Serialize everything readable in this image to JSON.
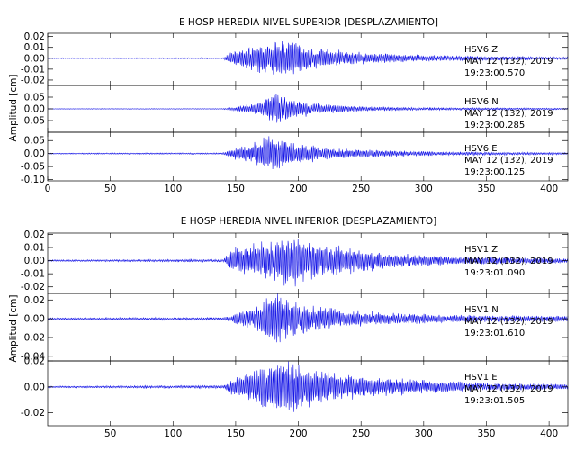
{
  "chart_data": [
    {
      "type": "line",
      "title": "E HOSP HEREDIA NIVEL SUPERIOR [DESPLAZAMIENTO]",
      "ylabel": "Amplitud [cm]",
      "xlabel": "",
      "xlim": [
        0,
        415
      ],
      "xticks": [
        "0",
        "50",
        "100",
        "150",
        "200",
        "250",
        "300",
        "350",
        "400"
      ],
      "grid": false,
      "series": [
        {
          "name": "HSV6 Z",
          "station": "HSV6",
          "component": "Z",
          "date": "MAY 12 (132), 2019",
          "start_time": "19:23:00.570",
          "color": "#1414e6",
          "ylim": [
            -0.025,
            0.023
          ],
          "yticks": [
            "0.02",
            "0.01",
            "0.00",
            "-0.01",
            "-0.02"
          ],
          "envelope": [
            [
              0,
              0.0004
            ],
            [
              140,
              0.0006
            ],
            [
              146,
              0.006
            ],
            [
              160,
              0.011
            ],
            [
              175,
              0.014
            ],
            [
              192,
              0.018
            ],
            [
              205,
              0.012
            ],
            [
              230,
              0.007
            ],
            [
              260,
              0.0045
            ],
            [
              300,
              0.003
            ],
            [
              350,
              0.002
            ],
            [
              415,
              0.0012
            ]
          ]
        },
        {
          "name": "HSV6 N",
          "station": "HSV6",
          "component": "N",
          "date": "MAY 12 (132), 2019",
          "start_time": "19:23:00.285",
          "color": "#1414e6",
          "ylim": [
            -0.1,
            0.1
          ],
          "yticks": [
            "0.05",
            "0.00",
            "-0.05"
          ],
          "envelope": [
            [
              0,
              0.001
            ],
            [
              140,
              0.0015
            ],
            [
              150,
              0.008
            ],
            [
              165,
              0.025
            ],
            [
              175,
              0.055
            ],
            [
              182,
              0.07
            ],
            [
              195,
              0.04
            ],
            [
              215,
              0.022
            ],
            [
              250,
              0.01
            ],
            [
              300,
              0.006
            ],
            [
              415,
              0.003
            ]
          ]
        },
        {
          "name": "HSV6 E",
          "station": "HSV6",
          "component": "E",
          "date": "MAY 12 (132), 2019",
          "start_time": "19:23:00.125",
          "color": "#1414e6",
          "ylim": [
            -0.105,
            0.082
          ],
          "yticks": [
            "0.05",
            "0.00",
            "-0.05",
            "-0.10"
          ],
          "envelope": [
            [
              0,
              0.002
            ],
            [
              140,
              0.003
            ],
            [
              148,
              0.02
            ],
            [
              165,
              0.04
            ],
            [
              176,
              0.07
            ],
            [
              185,
              0.06
            ],
            [
              200,
              0.035
            ],
            [
              230,
              0.02
            ],
            [
              270,
              0.012
            ],
            [
              320,
              0.007
            ],
            [
              415,
              0.004
            ]
          ]
        }
      ]
    },
    {
      "type": "line",
      "title": "E HOSP HEREDIA NIVEL INFERIOR [DESPLAZAMIENTO]",
      "ylabel": "Amplitud [cm]",
      "xlabel": "",
      "xlim": [
        0,
        415
      ],
      "xticks": [
        "50",
        "100",
        "150",
        "200",
        "250",
        "300",
        "350",
        "400"
      ],
      "grid": false,
      "series": [
        {
          "name": "HSV1 Z",
          "station": "HSV1",
          "component": "Z",
          "date": "MAY 12 (132), 2019",
          "start_time": "19:23:01.090",
          "color": "#1414e6",
          "ylim": [
            -0.025,
            0.021
          ],
          "yticks": [
            "0.02",
            "0.01",
            "0.00",
            "-0.01",
            "-0.02"
          ],
          "envelope": [
            [
              0,
              0.0006
            ],
            [
              140,
              0.001
            ],
            [
              146,
              0.008
            ],
            [
              165,
              0.013
            ],
            [
              185,
              0.017
            ],
            [
              198,
              0.02
            ],
            [
              215,
              0.014
            ],
            [
              240,
              0.01
            ],
            [
              280,
              0.005
            ],
            [
              330,
              0.003
            ],
            [
              415,
              0.002
            ]
          ]
        },
        {
          "name": "HSV1 N",
          "station": "HSV1",
          "component": "N",
          "date": "MAY 12 (132), 2019",
          "start_time": "19:23:01.610",
          "color": "#1414e6",
          "ylim": [
            -0.045,
            0.027
          ],
          "yticks": [
            "0.02",
            "0.00",
            "-0.02",
            "-0.04"
          ],
          "envelope": [
            [
              0,
              0.001
            ],
            [
              140,
              0.0015
            ],
            [
              150,
              0.006
            ],
            [
              165,
              0.012
            ],
            [
              178,
              0.025
            ],
            [
              183,
              0.03
            ],
            [
              195,
              0.018
            ],
            [
              230,
              0.01
            ],
            [
              270,
              0.006
            ],
            [
              330,
              0.004
            ],
            [
              415,
              0.003
            ]
          ]
        },
        {
          "name": "HSV1 E",
          "station": "HSV1",
          "component": "E",
          "date": "MAY 12 (132), 2019",
          "start_time": "19:23:01.505",
          "color": "#1414e6",
          "ylim": [
            -0.03,
            0.02
          ],
          "yticks": [
            "0.02",
            "0.00",
            "-0.02"
          ],
          "envelope": [
            [
              0,
              0.0006
            ],
            [
              140,
              0.0012
            ],
            [
              150,
              0.008
            ],
            [
              168,
              0.015
            ],
            [
              180,
              0.022
            ],
            [
              195,
              0.02
            ],
            [
              215,
              0.013
            ],
            [
              250,
              0.008
            ],
            [
              300,
              0.005
            ],
            [
              350,
              0.003
            ],
            [
              415,
              0.002
            ]
          ]
        }
      ]
    }
  ]
}
